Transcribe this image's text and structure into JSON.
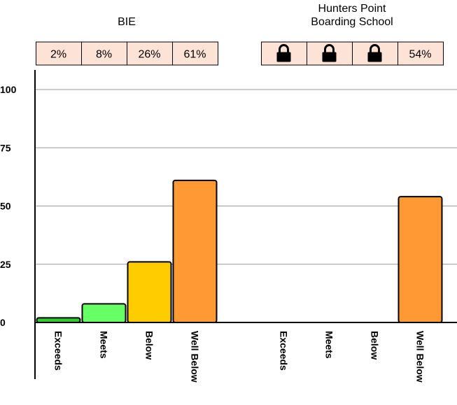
{
  "chart_data": {
    "type": "bar",
    "yticks": [
      0,
      25,
      50,
      75,
      100
    ],
    "ylim": [
      0,
      100
    ],
    "grid": true,
    "colors": {
      "Exceeds": "#2ecc2e",
      "Meets": "#66ff66",
      "Below": "#ffcc00",
      "Well Below": "#ff9933",
      "percent_box": "#fde2d6"
    },
    "groups": [
      {
        "title_lines": [
          "BIE"
        ],
        "categories": [
          "Exceeds",
          "Meets",
          "Below",
          "Well Below"
        ],
        "values": [
          2,
          8,
          26,
          61
        ],
        "labels": [
          "2%",
          "8%",
          "26%",
          "61%"
        ],
        "locked": [
          false,
          false,
          false,
          false
        ]
      },
      {
        "title_lines": [
          "Hunters Point",
          "Boarding School"
        ],
        "categories": [
          "Exceeds",
          "Meets",
          "Below",
          "Well Below"
        ],
        "values": [
          null,
          null,
          null,
          54
        ],
        "labels": [
          "",
          "",
          "",
          "54%"
        ],
        "locked": [
          true,
          true,
          true,
          false
        ],
        "lock_icon": "lock-icon"
      }
    ]
  }
}
